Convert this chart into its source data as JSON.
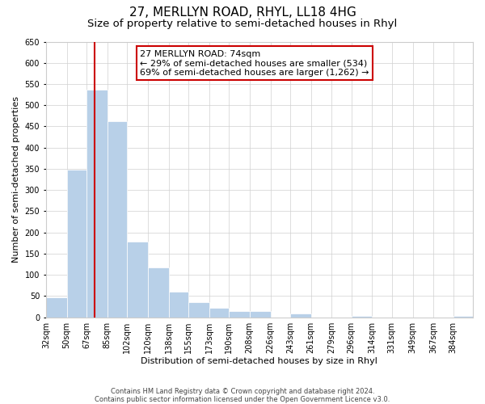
{
  "title": "27, MERLLYN ROAD, RHYL, LL18 4HG",
  "subtitle": "Size of property relative to semi-detached houses in Rhyl",
  "xlabel": "Distribution of semi-detached houses by size in Rhyl",
  "ylabel": "Number of semi-detached properties",
  "bin_labels": [
    "32sqm",
    "50sqm",
    "67sqm",
    "85sqm",
    "102sqm",
    "120sqm",
    "138sqm",
    "155sqm",
    "173sqm",
    "190sqm",
    "208sqm",
    "226sqm",
    "243sqm",
    "261sqm",
    "279sqm",
    "296sqm",
    "314sqm",
    "331sqm",
    "349sqm",
    "367sqm",
    "384sqm"
  ],
  "bin_edges": [
    32,
    50,
    67,
    85,
    102,
    120,
    138,
    155,
    173,
    190,
    208,
    226,
    243,
    261,
    279,
    296,
    314,
    331,
    349,
    367,
    384
  ],
  "bar_heights": [
    47,
    348,
    536,
    463,
    178,
    118,
    60,
    35,
    22,
    15,
    14,
    0,
    9,
    0,
    0,
    3,
    0,
    0,
    0,
    0,
    4
  ],
  "bar_color": "#b8d0e8",
  "property_line_x": 74,
  "property_line_color": "#cc0000",
  "annotation_line1": "27 MERLLYN ROAD: 74sqm",
  "annotation_line2": "← 29% of semi-detached houses are smaller (534)",
  "annotation_line3": "69% of semi-detached houses are larger (1,262) →",
  "annotation_box_color": "#ffffff",
  "annotation_box_edge_color": "#cc0000",
  "ylim": [
    0,
    650
  ],
  "yticks": [
    0,
    50,
    100,
    150,
    200,
    250,
    300,
    350,
    400,
    450,
    500,
    550,
    600,
    650
  ],
  "background_color": "#ffffff",
  "footer_line1": "Contains HM Land Registry data © Crown copyright and database right 2024.",
  "footer_line2": "Contains public sector information licensed under the Open Government Licence v3.0.",
  "title_fontsize": 11,
  "subtitle_fontsize": 9.5,
  "axis_label_fontsize": 8,
  "tick_fontsize": 7,
  "annotation_fontsize": 8,
  "footer_fontsize": 6
}
